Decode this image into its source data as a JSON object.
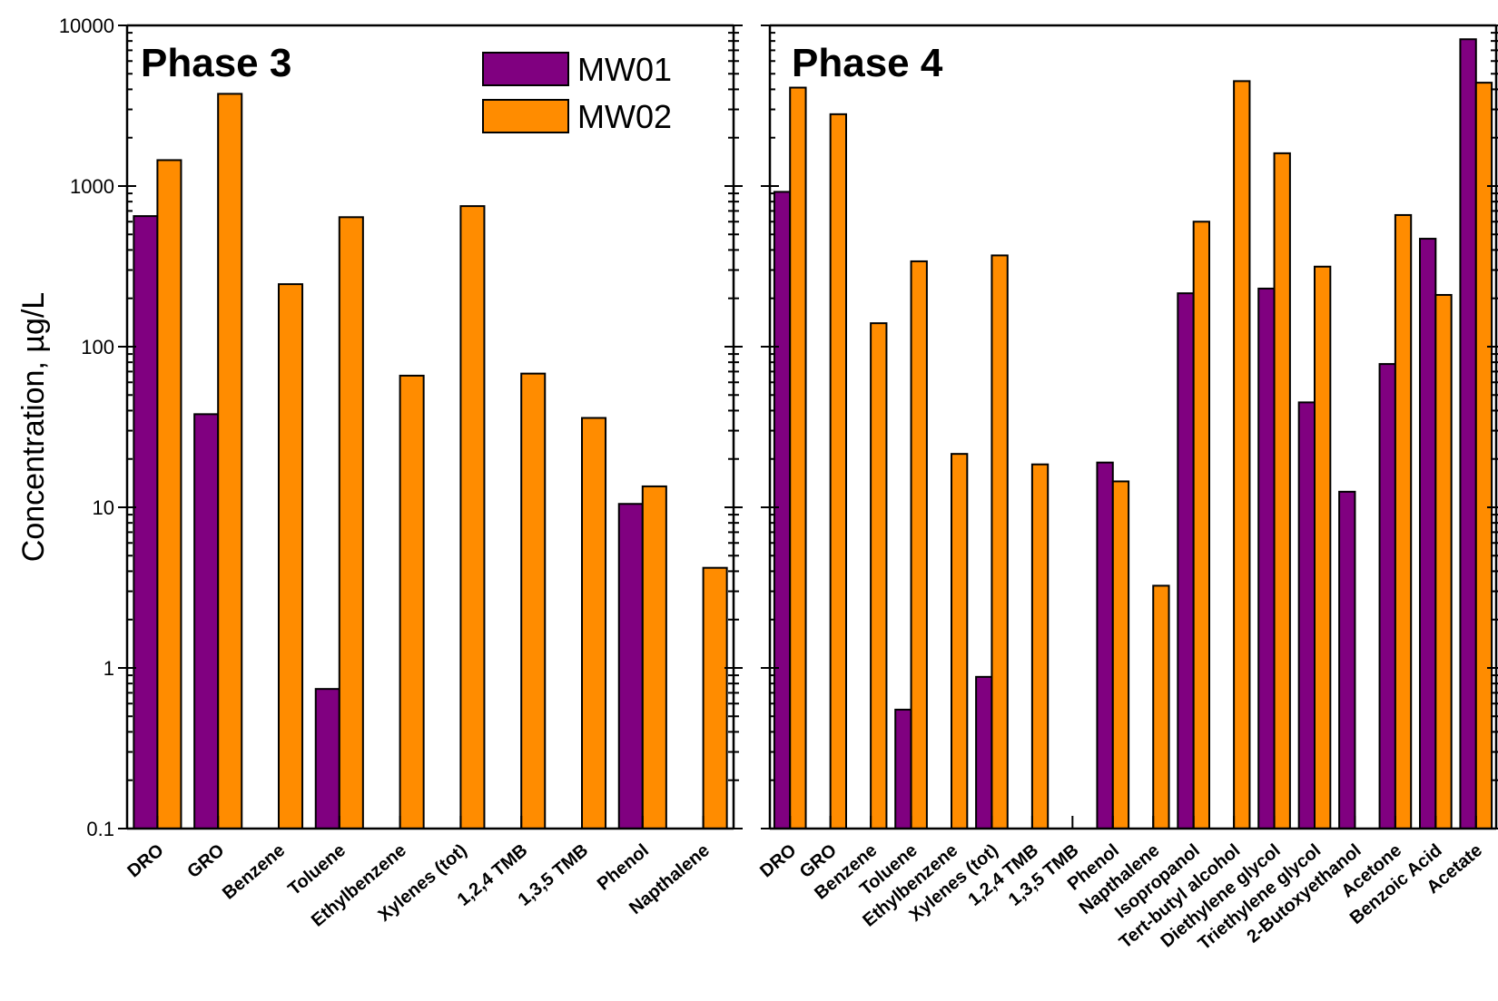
{
  "chart_data": [
    {
      "type": "bar",
      "title": "Phase 3",
      "ylabel": "Concentration, µg/L",
      "yscale": "log",
      "ylim": [
        0.1,
        10000
      ],
      "yticks": [
        "0.1",
        "1",
        "10",
        "100",
        "1000",
        "10000"
      ],
      "categories": [
        "DRO",
        "GRO",
        "Benzene",
        "Toluene",
        "Ethylbenzene",
        "Xylenes (tot)",
        "1,2,4 TMB",
        "1,3,5 TMB",
        "Phenol",
        "Napthalene"
      ],
      "series": [
        {
          "name": "MW01",
          "color": "#800080",
          "values": [
            650,
            38,
            null,
            0.74,
            null,
            null,
            null,
            null,
            10.5,
            null
          ]
        },
        {
          "name": "MW02",
          "color": "#ff8c00",
          "values": [
            1450,
            3750,
            245,
            640,
            66,
            750,
            68,
            36,
            13.5,
            4.2
          ]
        }
      ],
      "legend": "top-right"
    },
    {
      "type": "bar",
      "title": "Phase 4",
      "yscale": "log",
      "ylim": [
        0.1,
        10000
      ],
      "categories": [
        "DRO",
        "GRO",
        "Benzene",
        "Toluene",
        "Ethylbenzene",
        "Xylenes (tot)",
        "1,2,4 TMB",
        "1,3,5 TMB",
        "Phenol",
        "Napthalene",
        "Isopropanol",
        "Tert-butyl alcohol",
        "Diethylene glycol",
        "Triethylene glycol",
        "2-Butoxyethanol",
        "Acetone",
        "Benzoic Acid",
        "Acetate"
      ],
      "series": [
        {
          "name": "MW01",
          "color": "#800080",
          "values": [
            920,
            null,
            null,
            0.55,
            null,
            0.88,
            null,
            null,
            19,
            null,
            215,
            null,
            230,
            45,
            12.5,
            78,
            470,
            8200
          ]
        },
        {
          "name": "MW02",
          "color": "#ff8c00",
          "values": [
            4100,
            2800,
            140,
            340,
            21.5,
            370,
            18.5,
            null,
            14.5,
            3.25,
            600,
            4500,
            1600,
            315,
            null,
            660,
            210,
            4400
          ]
        }
      ]
    }
  ]
}
